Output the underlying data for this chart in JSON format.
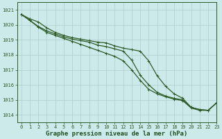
{
  "background_color": "#cdeaea",
  "grid_color": "#b0cccc",
  "line_color": "#2d5a27",
  "xlim": [
    -0.5,
    23
  ],
  "ylim": [
    1013.5,
    1021.5
  ],
  "yticks": [
    1014,
    1015,
    1016,
    1017,
    1018,
    1019,
    1020,
    1021
  ],
  "xticks": [
    0,
    1,
    2,
    3,
    4,
    5,
    6,
    7,
    8,
    9,
    10,
    11,
    12,
    13,
    14,
    15,
    16,
    17,
    18,
    19,
    20,
    21,
    22,
    23
  ],
  "xlabel": "Graphe pression niveau de la mer (hPa)",
  "series1_x": [
    0,
    1,
    2,
    3,
    4,
    5,
    6,
    7,
    8,
    9,
    10,
    11,
    12,
    13,
    14,
    15,
    16,
    17,
    18,
    19,
    20,
    21,
    22,
    23
  ],
  "series1_y": [
    1020.7,
    1020.4,
    1020.2,
    1019.8,
    1019.5,
    1019.3,
    1019.15,
    1019.05,
    1018.95,
    1018.85,
    1018.8,
    1018.6,
    1018.45,
    1018.35,
    1018.25,
    1017.6,
    1016.6,
    1015.9,
    1015.4,
    1015.1,
    1014.5,
    1014.35,
    1014.3,
    1014.8
  ],
  "series2_x": [
    0,
    1,
    2,
    3,
    4,
    5,
    6,
    7,
    8,
    9,
    10,
    11,
    12,
    13,
    14,
    15,
    16,
    17,
    18,
    19,
    20,
    21,
    22,
    23
  ],
  "series2_y": [
    1020.7,
    1020.3,
    1019.9,
    1019.6,
    1019.4,
    1019.2,
    1019.05,
    1018.95,
    1018.85,
    1018.65,
    1018.55,
    1018.4,
    1018.25,
    1017.65,
    1016.65,
    1016.0,
    1015.5,
    1015.25,
    1015.1,
    1015.0,
    1014.5,
    1014.35,
    1014.3,
    1014.8
  ],
  "series3_x": [
    0,
    1,
    2,
    3,
    4,
    5,
    6,
    7,
    8,
    9,
    10,
    11,
    12,
    13,
    14,
    15,
    16,
    17,
    18,
    19,
    20,
    21,
    22,
    23
  ],
  "series3_y": [
    1020.7,
    1020.3,
    1019.85,
    1019.5,
    1019.3,
    1019.1,
    1018.9,
    1018.7,
    1018.5,
    1018.3,
    1018.1,
    1017.9,
    1017.6,
    1017.0,
    1016.3,
    1015.7,
    1015.4,
    1015.2,
    1015.05,
    1014.95,
    1014.45,
    1014.3,
    1014.3,
    1014.8
  ],
  "marker": "+",
  "markersize": 3.5,
  "linewidth": 0.9,
  "xlabel_fontsize": 6.5,
  "tick_fontsize": 5.0,
  "xlabel_color": "#1e4d1e",
  "tick_color": "#2d5a27",
  "spine_color": "#2d5a27"
}
